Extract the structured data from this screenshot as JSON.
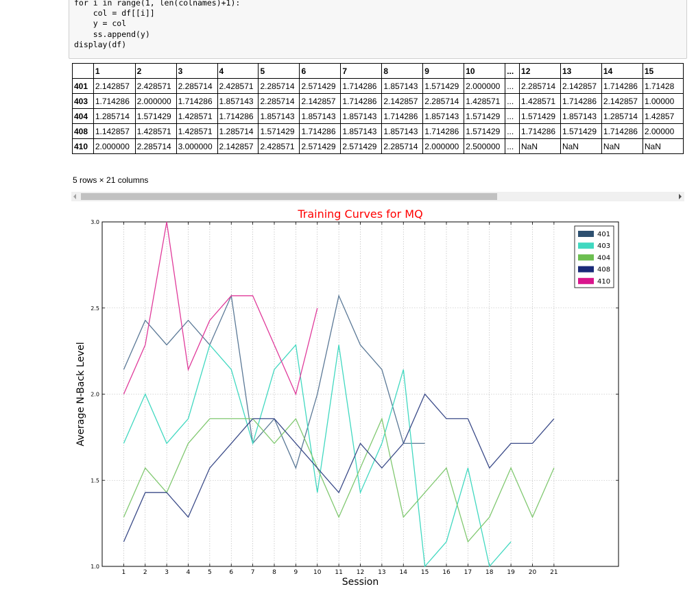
{
  "code": {
    "lines": [
      "for i in range(1, len(colnames)+1):",
      "    col = df[[i]]",
      "    y = col",
      "    ss.append(y)",
      "display(df)"
    ]
  },
  "dataframe": {
    "columns": [
      "",
      "1",
      "2",
      "3",
      "4",
      "5",
      "6",
      "7",
      "8",
      "9",
      "10",
      "...",
      "12",
      "13",
      "14",
      "15"
    ],
    "rows": [
      [
        "401",
        "2.142857",
        "2.428571",
        "2.285714",
        "2.428571",
        "2.285714",
        "2.571429",
        "1.714286",
        "1.857143",
        "1.571429",
        "2.000000",
        "...",
        "2.285714",
        "2.142857",
        "1.714286",
        "1.71428"
      ],
      [
        "403",
        "1.714286",
        "2.000000",
        "1.714286",
        "1.857143",
        "2.285714",
        "2.142857",
        "1.714286",
        "2.142857",
        "2.285714",
        "1.428571",
        "...",
        "1.428571",
        "1.714286",
        "2.142857",
        "1.00000"
      ],
      [
        "404",
        "1.285714",
        "1.571429",
        "1.428571",
        "1.714286",
        "1.857143",
        "1.857143",
        "1.857143",
        "1.714286",
        "1.857143",
        "1.571429",
        "...",
        "1.571429",
        "1.857143",
        "1.285714",
        "1.42857"
      ],
      [
        "408",
        "1.142857",
        "1.428571",
        "1.428571",
        "1.285714",
        "1.571429",
        "1.714286",
        "1.857143",
        "1.857143",
        "1.714286",
        "1.571429",
        "...",
        "1.714286",
        "1.571429",
        "1.714286",
        "2.00000"
      ],
      [
        "410",
        "2.000000",
        "2.285714",
        "3.000000",
        "2.142857",
        "2.428571",
        "2.571429",
        "2.571429",
        "2.285714",
        "2.000000",
        "2.500000",
        "...",
        "NaN",
        "NaN",
        "NaN",
        "NaN"
      ]
    ],
    "shape_text": "5 rows × 21 columns"
  },
  "chart_data": {
    "type": "line",
    "title": "Training Curves for MQ",
    "xlabel": "Session",
    "ylabel": "Average N-Back Level",
    "x": [
      1,
      2,
      3,
      4,
      5,
      6,
      7,
      8,
      9,
      10,
      11,
      12,
      13,
      14,
      15,
      16,
      17,
      18,
      19,
      20,
      21
    ],
    "xlim": [
      0,
      24
    ],
    "ylim": [
      1.0,
      3.0
    ],
    "yticks": [
      "1.0",
      "1.5",
      "2.0",
      "2.5",
      "3.0"
    ],
    "grid": true,
    "legend_position": "top-right",
    "series": [
      {
        "name": "401",
        "color": "#5a7896",
        "values": [
          2.142857,
          2.428571,
          2.285714,
          2.428571,
          2.285714,
          2.571429,
          1.714286,
          1.857143,
          1.571429,
          2.0,
          2.571429,
          2.285714,
          2.142857,
          1.714286,
          1.714286,
          null,
          null,
          null,
          null,
          null,
          null
        ]
      },
      {
        "name": "403",
        "color": "#40d8c0",
        "values": [
          1.714286,
          2.0,
          1.714286,
          1.857143,
          2.285714,
          2.142857,
          1.714286,
          2.142857,
          2.285714,
          1.428571,
          2.285714,
          1.428571,
          1.714286,
          2.142857,
          1.0,
          1.142857,
          1.571429,
          1.0,
          1.142857,
          null,
          null
        ]
      },
      {
        "name": "404",
        "color": "#80c870",
        "values": [
          1.285714,
          1.571429,
          1.428571,
          1.714286,
          1.857143,
          1.857143,
          1.857143,
          1.714286,
          1.857143,
          1.571429,
          1.285714,
          1.571429,
          1.857143,
          1.285714,
          1.428571,
          1.571429,
          1.142857,
          1.285714,
          1.571429,
          1.285714,
          1.571429
        ]
      },
      {
        "name": "408",
        "color": "#3a4a88",
        "values": [
          1.142857,
          1.428571,
          1.428571,
          1.285714,
          1.571429,
          1.714286,
          1.857143,
          1.857143,
          1.714286,
          1.571429,
          1.428571,
          1.714286,
          1.571429,
          1.714286,
          2.0,
          1.857143,
          1.857143,
          1.571429,
          1.714286,
          1.714286,
          1.857143
        ]
      },
      {
        "name": "410",
        "color": "#e03a9a",
        "values": [
          2.0,
          2.285714,
          3.0,
          2.142857,
          2.428571,
          2.571429,
          2.571429,
          2.285714,
          2.0,
          2.5,
          null,
          null,
          null,
          null,
          null,
          null,
          null,
          null,
          null,
          null,
          null
        ]
      }
    ],
    "legend_colors": {
      "401": "#2e5070",
      "403": "#40d8c0",
      "404": "#6cbf50",
      "408": "#1a2a78",
      "410": "#d9158c"
    },
    "title_color": "#ff0000"
  }
}
